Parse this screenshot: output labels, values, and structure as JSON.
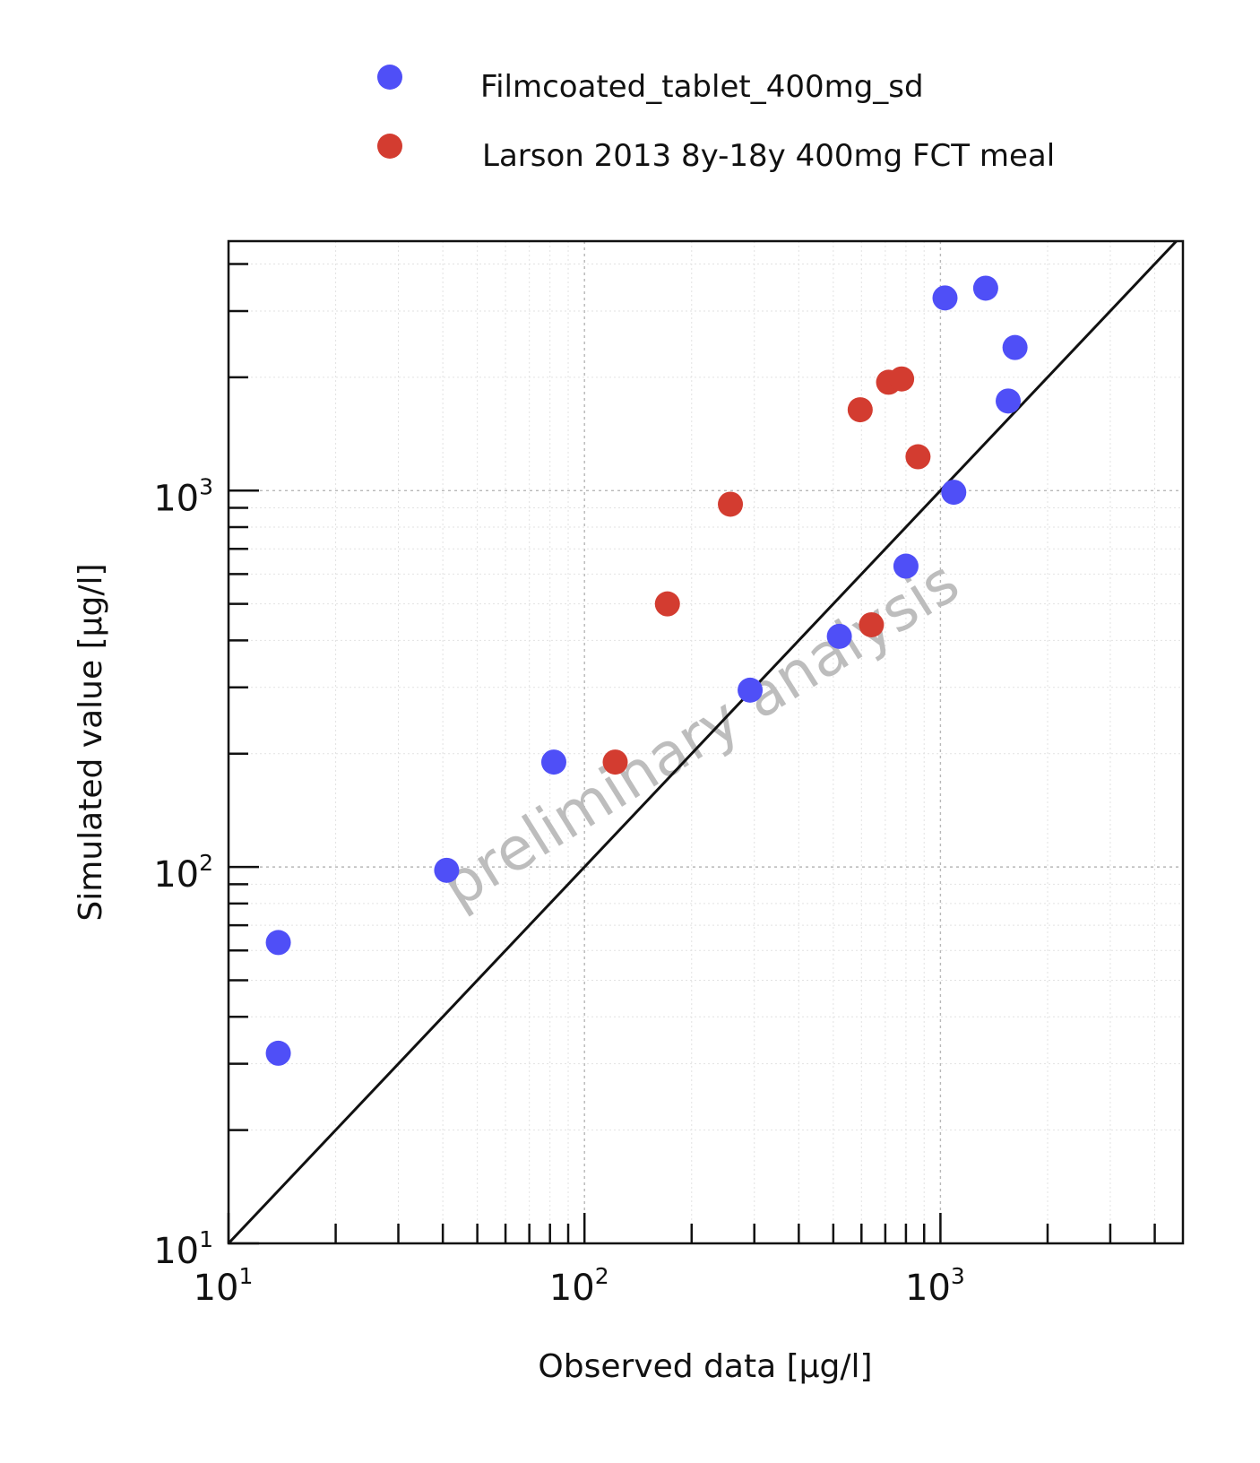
{
  "chart_data": {
    "type": "scatter",
    "xlabel": "Observed data [µg/l]",
    "ylabel": "Simulated value [µg/l]",
    "xscale": "log",
    "yscale": "log",
    "xlim": [
      10,
      4800
    ],
    "ylim": [
      10,
      4600
    ],
    "x_ticks": [
      {
        "base": "10",
        "exp": "1"
      },
      {
        "base": "10",
        "exp": "2"
      },
      {
        "base": "10",
        "exp": "3"
      }
    ],
    "y_ticks": [
      {
        "base": "10",
        "exp": "1"
      },
      {
        "base": "10",
        "exp": "2"
      },
      {
        "base": "10",
        "exp": "3"
      }
    ],
    "grid": true,
    "identity_line": true,
    "legend_position": "top",
    "watermark": "preliminary analysis",
    "series": [
      {
        "name": "Filmcoated_tablet_400mg_sd",
        "color": "#4f4ff7",
        "points": [
          {
            "x": 13.8,
            "y": 63
          },
          {
            "x": 13.8,
            "y": 32
          },
          {
            "x": 41,
            "y": 98
          },
          {
            "x": 82,
            "y": 190
          },
          {
            "x": 292,
            "y": 295
          },
          {
            "x": 520,
            "y": 410
          },
          {
            "x": 800,
            "y": 630
          },
          {
            "x": 1030,
            "y": 3250
          },
          {
            "x": 1340,
            "y": 3450
          },
          {
            "x": 1620,
            "y": 2400
          },
          {
            "x": 1550,
            "y": 1730
          },
          {
            "x": 1090,
            "y": 990
          }
        ]
      },
      {
        "name": "Larson 2013 8y-18y 400mg FCT meal",
        "color": "#d33c30",
        "points": [
          {
            "x": 122,
            "y": 190
          },
          {
            "x": 171,
            "y": 500
          },
          {
            "x": 257,
            "y": 920
          },
          {
            "x": 595,
            "y": 1640
          },
          {
            "x": 640,
            "y": 440
          },
          {
            "x": 715,
            "y": 1940
          },
          {
            "x": 778,
            "y": 1980
          },
          {
            "x": 865,
            "y": 1230
          }
        ]
      }
    ]
  }
}
